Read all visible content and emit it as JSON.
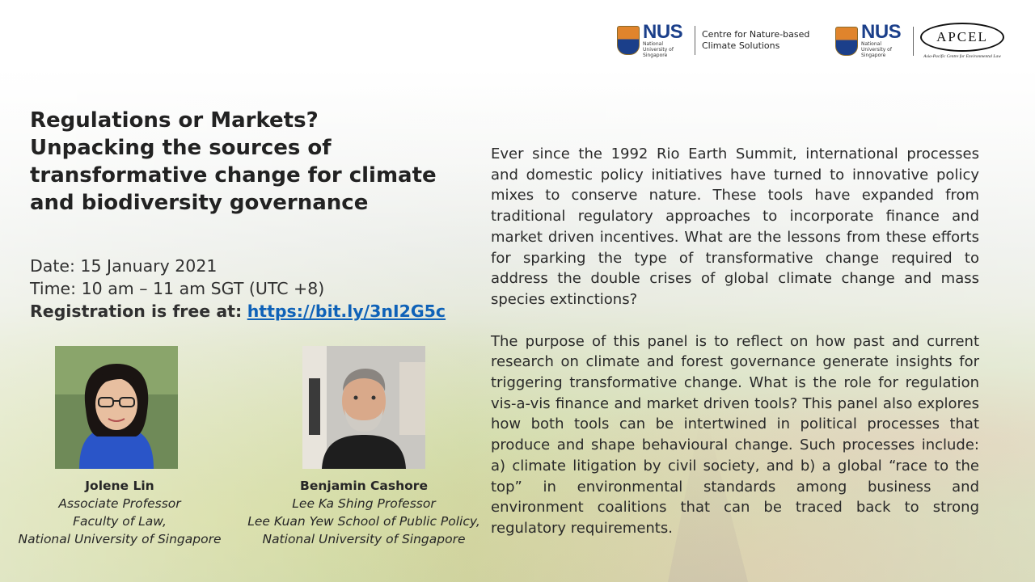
{
  "logos": {
    "nus_wordmark": "NUS",
    "nus_subtext": "National University of Singapore",
    "centre_name_line1": "Centre for Nature-based",
    "centre_name_line2": "Climate Solutions",
    "apcel_wordmark": "APCEL",
    "apcel_subtext": "Asia-Pacific Centre for Environmental Law"
  },
  "title": "Regulations or Markets?\nUnpacking the sources of\ntransformative change for climate\nand biodiversity governance",
  "event": {
    "date": "Date: 15 January 2021",
    "time": "Time: 10 am – 11 am SGT (UTC +8)",
    "registration_label": "Registration is free at:",
    "registration_link": "https://bit.ly/3nI2G5c"
  },
  "speakers": [
    {
      "name": "Jolene Lin",
      "title": "Associate Professor",
      "dept": "Faculty of Law,",
      "org": "National University of Singapore"
    },
    {
      "name": "Benjamin Cashore",
      "title": "Lee Ka Shing Professor",
      "dept": "Lee Kuan Yew School of Public Policy,",
      "org": "National University of Singapore"
    }
  ],
  "body": {
    "paragraph1": "Ever since the 1992 Rio Earth Summit, international processes and domestic policy initiatives have turned to innovative policy mixes to conserve nature. These tools have expanded from traditional regulatory approaches to incorporate finance and market driven incentives. What are the lessons from these efforts for sparking the type of transformative change required to address the double crises of global climate change and mass species extinctions?",
    "paragraph2": "The purpose of this panel is to reflect on how past and current research on climate and forest governance generate insights for triggering transformative change. What is the role for regulation vis-a-vis finance and market driven tools? This panel also explores how both tools can be intertwined in political processes that produce and shape behavioural change. Such processes include: a) climate litigation by civil society, and b) a global “race to the top” in environmental standards among business and environment coalitions that can be traced back to strong regulatory requirements."
  },
  "colors": {
    "link": "#0f62b8",
    "nus_blue": "#1b3f8a",
    "nus_orange": "#e0842c"
  }
}
